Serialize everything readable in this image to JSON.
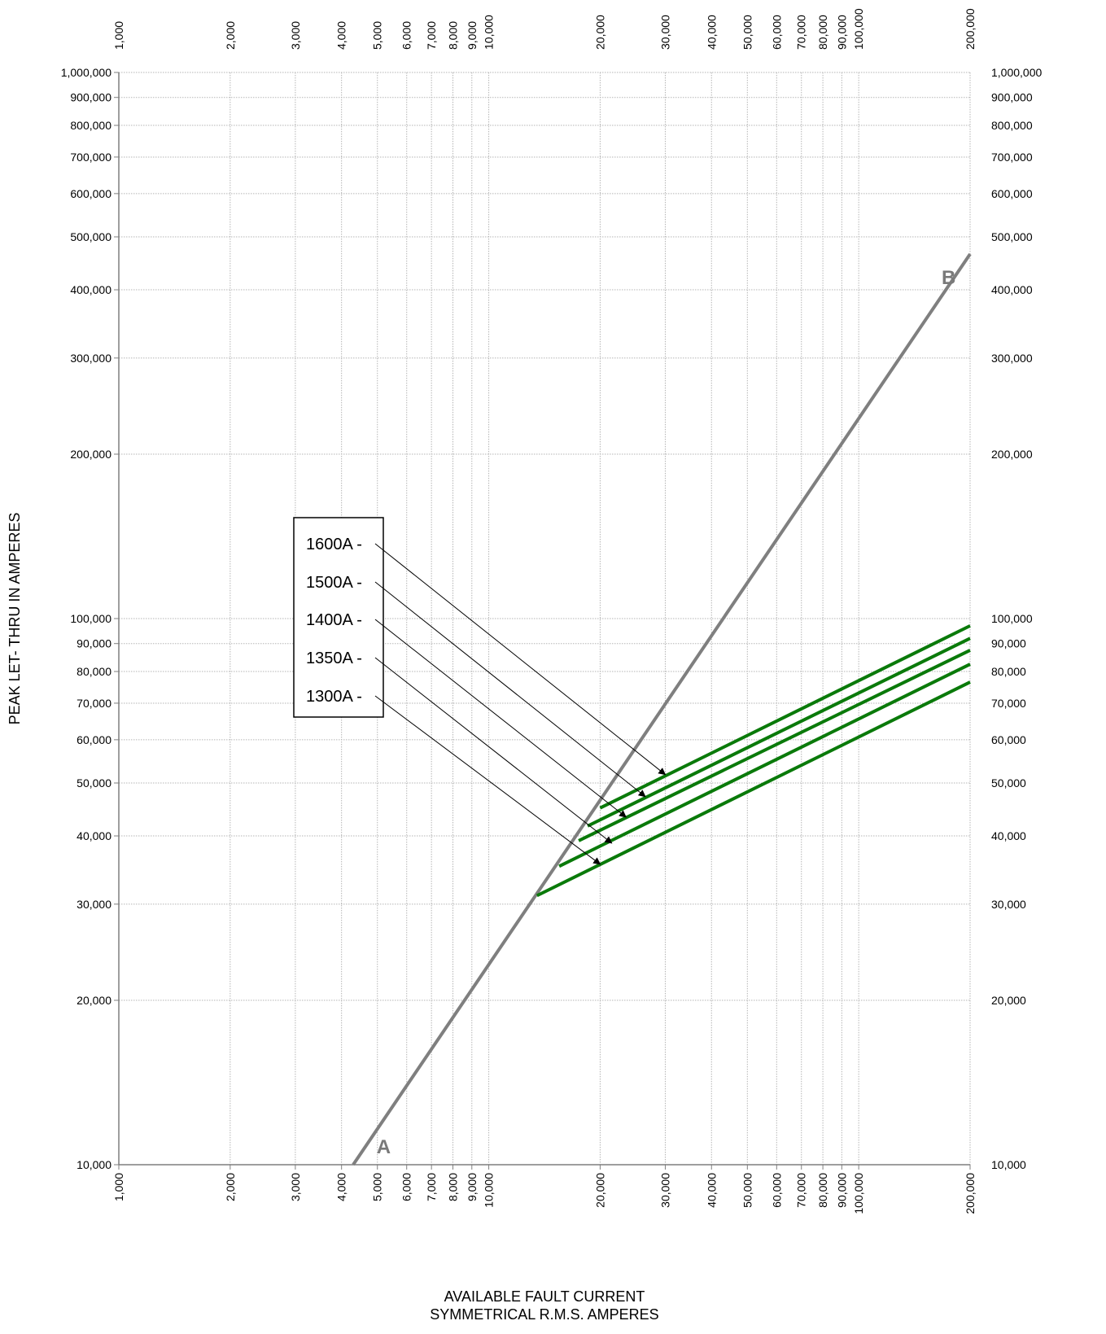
{
  "chart_data": {
    "type": "line",
    "x_scale": "log",
    "y_scale": "log",
    "xlim": [
      1000,
      200000
    ],
    "ylim": [
      10000,
      1000000
    ],
    "grid": true,
    "xlabel": [
      "AVAILABLE FAULT CURRENT",
      "SYMMETRICAL  R.M.S.  AMPERES"
    ],
    "ylabel": "PEAK LET- THRU IN AMPERES",
    "x_ticks": [
      {
        "value": 1000,
        "label": "1,000"
      },
      {
        "value": 2000,
        "label": "2,000"
      },
      {
        "value": 3000,
        "label": "3,000"
      },
      {
        "value": 4000,
        "label": "4,000"
      },
      {
        "value": 5000,
        "label": "5,000"
      },
      {
        "value": 6000,
        "label": "6,000"
      },
      {
        "value": 7000,
        "label": "7,000"
      },
      {
        "value": 8000,
        "label": "8,000"
      },
      {
        "value": 9000,
        "label": "9,000"
      },
      {
        "value": 10000,
        "label": "10,000"
      },
      {
        "value": 20000,
        "label": "20,000"
      },
      {
        "value": 30000,
        "label": "30,000"
      },
      {
        "value": 40000,
        "label": "40,000"
      },
      {
        "value": 50000,
        "label": "50,000"
      },
      {
        "value": 60000,
        "label": "60,000"
      },
      {
        "value": 70000,
        "label": "70,000"
      },
      {
        "value": 80000,
        "label": "80,000"
      },
      {
        "value": 90000,
        "label": "90,000"
      },
      {
        "value": 100000,
        "label": "100,000"
      },
      {
        "value": 200000,
        "label": "200,000"
      }
    ],
    "y_ticks": [
      {
        "value": 10000,
        "label": "10,000"
      },
      {
        "value": 20000,
        "label": "20,000"
      },
      {
        "value": 30000,
        "label": "30,000"
      },
      {
        "value": 40000,
        "label": "40,000"
      },
      {
        "value": 50000,
        "label": "50,000"
      },
      {
        "value": 60000,
        "label": "60,000"
      },
      {
        "value": 70000,
        "label": "70,000"
      },
      {
        "value": 80000,
        "label": "80,000"
      },
      {
        "value": 90000,
        "label": "90,000"
      },
      {
        "value": 100000,
        "label": "100,000"
      },
      {
        "value": 200000,
        "label": "200,000"
      },
      {
        "value": 300000,
        "label": "300,000"
      },
      {
        "value": 400000,
        "label": "400,000"
      },
      {
        "value": 500000,
        "label": "500,000"
      },
      {
        "value": 600000,
        "label": "600,000"
      },
      {
        "value": 700000,
        "label": "700,000"
      },
      {
        "value": 800000,
        "label": "800,000"
      },
      {
        "value": 900000,
        "label": "900,000"
      },
      {
        "value": 1000000,
        "label": "1,000,000"
      }
    ],
    "reference_line": {
      "points": [
        [
          4300,
          10000
        ],
        [
          200000,
          465000
        ]
      ],
      "color": "#7f7f7f",
      "end_labels": [
        {
          "text": "A",
          "at": [
            5200,
            10500
          ]
        },
        {
          "text": "B",
          "at": [
            175000,
            410000
          ]
        }
      ]
    },
    "series": [
      {
        "name": "1600A",
        "points": [
          [
            20000,
            45000
          ],
          [
            200000,
            97000
          ]
        ],
        "arrow_tip": [
          30000,
          51800
        ]
      },
      {
        "name": "1500A",
        "points": [
          [
            18500,
            41700
          ],
          [
            200000,
            92000
          ]
        ],
        "arrow_tip": [
          26500,
          47200
        ]
      },
      {
        "name": "1400A",
        "points": [
          [
            17500,
            39200
          ],
          [
            200000,
            87500
          ]
        ],
        "arrow_tip": [
          23500,
          43300
        ]
      },
      {
        "name": "1350A",
        "points": [
          [
            15500,
            35200
          ],
          [
            200000,
            82500
          ]
        ],
        "arrow_tip": [
          21500,
          38800
        ]
      },
      {
        "name": "1300A",
        "points": [
          [
            13500,
            31100
          ],
          [
            200000,
            76500
          ]
        ],
        "arrow_tip": [
          20000,
          35500
        ]
      }
    ],
    "series_color": "#0a7a0a",
    "legend": {
      "placement": "center-left",
      "labels": [
        "1600A -",
        "1500A -",
        "1400A -",
        "1350A -",
        "1300A -"
      ]
    }
  }
}
